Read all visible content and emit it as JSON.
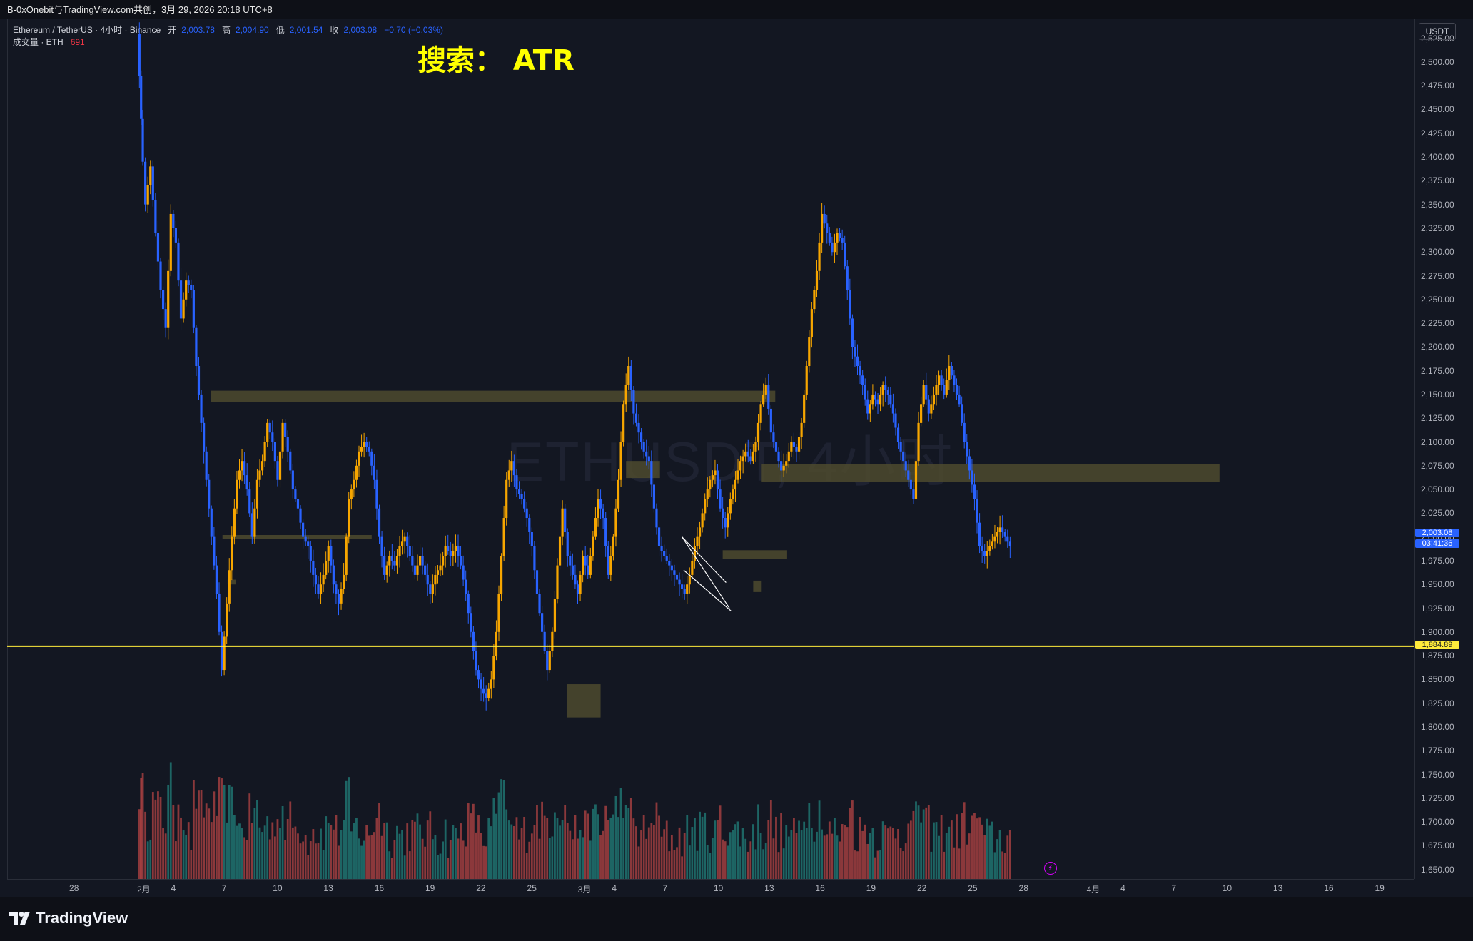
{
  "header": {
    "share_text": "B-0xOnebit与TradingView.com共创，3月 29, 2026 20:18 UTC+8"
  },
  "legend": {
    "symbol": "Ethereum / TetherUS · 4小时 · Binance",
    "open_label": "开=",
    "open": "2,003.78",
    "high_label": "高=",
    "high": "2,004.90",
    "low_label": "低=",
    "low": "2,001.54",
    "close_label": "收=",
    "close": "2,003.08",
    "change": "−0.70 (−0.03%)",
    "volume_label": "成交量 · ETH",
    "volume": "691"
  },
  "watermark": "ETHUSDT, 4小时",
  "annotation": "搜索： ATR",
  "price_axis": {
    "unit": "USDT",
    "current_price": "2,003.08",
    "countdown": "03:41:36",
    "line_price": "1,884.89"
  },
  "footer": {
    "brand": "TradingView"
  },
  "colors": {
    "background": "#131722",
    "up_candle": "#f7a600",
    "down_candle": "#2962ff",
    "vol_up": "#26a69a",
    "vol_down": "#ef5350",
    "zone": "#4d4a2e",
    "support_line": "#ffeb3b"
  },
  "chart_data": {
    "type": "candlestick",
    "y_ticks": [
      "2,525.00",
      "2,500.00",
      "2,475.00",
      "2,450.00",
      "2,425.00",
      "2,400.00",
      "2,375.00",
      "2,350.00",
      "2,325.00",
      "2,300.00",
      "2,275.00",
      "2,250.00",
      "2,225.00",
      "2,200.00",
      "2,175.00",
      "2,150.00",
      "2,125.00",
      "2,100.00",
      "2,075.00",
      "2,050.00",
      "2,025.00",
      "2,000.00",
      "1,975.00",
      "1,950.00",
      "1,925.00",
      "1,900.00",
      "1,875.00",
      "1,850.00",
      "1,825.00",
      "1,800.00",
      "1,775.00",
      "1,750.00",
      "1,725.00",
      "1,700.00",
      "1,675.00",
      "1,650.00"
    ],
    "ylim": [
      1640,
      2545
    ],
    "x_ticks": [
      "28",
      "2月",
      "4",
      "7",
      "10",
      "13",
      "16",
      "19",
      "22",
      "25",
      "3月",
      "4",
      "7",
      "10",
      "13",
      "16",
      "19",
      "22",
      "25",
      "28",
      "4月",
      "4",
      "7",
      "10",
      "13",
      "16",
      "19"
    ],
    "x_tick_days": [
      -4,
      0,
      2,
      5,
      8,
      11,
      14,
      17,
      20,
      23,
      26,
      28,
      31,
      34,
      37,
      40,
      43,
      46,
      49,
      52,
      56,
      58,
      61,
      64,
      67,
      70,
      73
    ],
    "xlim": [
      -8,
      75
    ],
    "path": [
      [
        -0.2,
        2530
      ],
      [
        0,
        2440
      ],
      [
        0.3,
        2350
      ],
      [
        0.6,
        2390
      ],
      [
        0.9,
        2320
      ],
      [
        1.2,
        2260
      ],
      [
        1.5,
        2220
      ],
      [
        1.8,
        2340
      ],
      [
        2.1,
        2310
      ],
      [
        2.4,
        2230
      ],
      [
        2.7,
        2270
      ],
      [
        3.0,
        2260
      ],
      [
        3.3,
        2180
      ],
      [
        3.6,
        2120
      ],
      [
        3.9,
        2060
      ],
      [
        4.2,
        2000
      ],
      [
        4.5,
        1940
      ],
      [
        4.8,
        1860
      ],
      [
        5.1,
        1930
      ],
      [
        5.4,
        2000
      ],
      [
        5.7,
        2060
      ],
      [
        6.0,
        2080
      ],
      [
        6.3,
        2050
      ],
      [
        6.6,
        2000
      ],
      [
        6.9,
        2060
      ],
      [
        7.2,
        2080
      ],
      [
        7.5,
        2120
      ],
      [
        7.8,
        2100
      ],
      [
        8.1,
        2060
      ],
      [
        8.4,
        2120
      ],
      [
        8.7,
        2090
      ],
      [
        9.0,
        2050
      ],
      [
        9.3,
        2030
      ],
      [
        9.6,
        2000
      ],
      [
        9.9,
        1990
      ],
      [
        10.2,
        1960
      ],
      [
        10.5,
        1940
      ],
      [
        10.8,
        1960
      ],
      [
        11.1,
        1990
      ],
      [
        11.4,
        1950
      ],
      [
        11.7,
        1930
      ],
      [
        12.0,
        1960
      ],
      [
        12.3,
        2040
      ],
      [
        12.6,
        2060
      ],
      [
        12.9,
        2090
      ],
      [
        13.2,
        2100
      ],
      [
        13.5,
        2090
      ],
      [
        13.8,
        2060
      ],
      [
        14.1,
        2000
      ],
      [
        14.4,
        1960
      ],
      [
        14.7,
        1980
      ],
      [
        15.0,
        1970
      ],
      [
        15.3,
        1990
      ],
      [
        15.6,
        2000
      ],
      [
        15.9,
        1980
      ],
      [
        16.2,
        1960
      ],
      [
        16.5,
        1980
      ],
      [
        16.8,
        1960
      ],
      [
        17.1,
        1940
      ],
      [
        17.4,
        1960
      ],
      [
        17.7,
        1970
      ],
      [
        18.0,
        1990
      ],
      [
        18.3,
        1980
      ],
      [
        18.6,
        1990
      ],
      [
        18.9,
        1970
      ],
      [
        19.2,
        1940
      ],
      [
        19.5,
        1900
      ],
      [
        19.8,
        1860
      ],
      [
        20.1,
        1840
      ],
      [
        20.4,
        1830
      ],
      [
        20.7,
        1850
      ],
      [
        21.0,
        1900
      ],
      [
        21.3,
        1980
      ],
      [
        21.6,
        2060
      ],
      [
        21.9,
        2080
      ],
      [
        22.2,
        2050
      ],
      [
        22.5,
        2040
      ],
      [
        22.8,
        2020
      ],
      [
        23.1,
        1990
      ],
      [
        23.4,
        1940
      ],
      [
        23.7,
        1900
      ],
      [
        24.0,
        1860
      ],
      [
        24.3,
        1900
      ],
      [
        24.6,
        1970
      ],
      [
        24.9,
        2030
      ],
      [
        25.2,
        1980
      ],
      [
        25.5,
        1960
      ],
      [
        25.8,
        1940
      ],
      [
        26.1,
        1980
      ],
      [
        26.4,
        1960
      ],
      [
        26.7,
        2000
      ],
      [
        27.0,
        2040
      ],
      [
        27.3,
        2020
      ],
      [
        27.6,
        1960
      ],
      [
        27.9,
        2000
      ],
      [
        28.2,
        2060
      ],
      [
        28.5,
        2140
      ],
      [
        28.8,
        2180
      ],
      [
        29.1,
        2130
      ],
      [
        29.4,
        2110
      ],
      [
        29.7,
        2090
      ],
      [
        30.0,
        2080
      ],
      [
        30.3,
        2030
      ],
      [
        30.6,
        1990
      ],
      [
        30.9,
        1980
      ],
      [
        31.2,
        1970
      ],
      [
        31.5,
        1960
      ],
      [
        31.8,
        1950
      ],
      [
        32.1,
        1940
      ],
      [
        32.4,
        1960
      ],
      [
        32.7,
        1990
      ],
      [
        33.0,
        2010
      ],
      [
        33.3,
        2040
      ],
      [
        33.6,
        2060
      ],
      [
        33.9,
        2070
      ],
      [
        34.2,
        2030
      ],
      [
        34.5,
        2010
      ],
      [
        34.8,
        2040
      ],
      [
        35.1,
        2060
      ],
      [
        35.4,
        2080
      ],
      [
        35.7,
        2090
      ],
      [
        36.0,
        2080
      ],
      [
        36.3,
        2100
      ],
      [
        36.6,
        2140
      ],
      [
        36.9,
        2160
      ],
      [
        37.2,
        2110
      ],
      [
        37.5,
        2090
      ],
      [
        37.8,
        2070
      ],
      [
        38.1,
        2080
      ],
      [
        38.4,
        2100
      ],
      [
        38.7,
        2090
      ],
      [
        39.0,
        2120
      ],
      [
        39.3,
        2180
      ],
      [
        39.6,
        2240
      ],
      [
        39.9,
        2280
      ],
      [
        40.2,
        2340
      ],
      [
        40.5,
        2320
      ],
      [
        40.8,
        2300
      ],
      [
        41.1,
        2320
      ],
      [
        41.4,
        2310
      ],
      [
        41.7,
        2260
      ],
      [
        42.0,
        2200
      ],
      [
        42.3,
        2180
      ],
      [
        42.6,
        2160
      ],
      [
        42.9,
        2130
      ],
      [
        43.2,
        2150
      ],
      [
        43.5,
        2140
      ],
      [
        43.8,
        2160
      ],
      [
        44.1,
        2150
      ],
      [
        44.4,
        2130
      ],
      [
        44.7,
        2100
      ],
      [
        45.0,
        2080
      ],
      [
        45.3,
        2060
      ],
      [
        45.6,
        2040
      ],
      [
        45.9,
        2120
      ],
      [
        46.2,
        2160
      ],
      [
        46.5,
        2130
      ],
      [
        46.8,
        2150
      ],
      [
        47.1,
        2170
      ],
      [
        47.4,
        2150
      ],
      [
        47.7,
        2180
      ],
      [
        48.0,
        2160
      ],
      [
        48.3,
        2140
      ],
      [
        48.6,
        2100
      ],
      [
        48.9,
        2070
      ],
      [
        49.2,
        2040
      ],
      [
        49.5,
        1990
      ],
      [
        49.8,
        1980
      ],
      [
        50.1,
        1990
      ],
      [
        50.4,
        2000
      ],
      [
        50.7,
        2010
      ],
      [
        51.0,
        2000
      ],
      [
        51.3,
        1990
      ]
    ],
    "zones": [
      {
        "x0": 4.0,
        "x1": 37.3,
        "y0": 2142,
        "y1": 2154
      },
      {
        "x0": 4.7,
        "x1": 13.5,
        "y0": 1998,
        "y1": 2002
      },
      {
        "x0": 5.0,
        "x1": 5.5,
        "y0": 1950,
        "y1": 1955
      },
      {
        "x0": 28.5,
        "x1": 30.5,
        "y0": 2062,
        "y1": 2080
      },
      {
        "x0": 36.5,
        "x1": 63.5,
        "y0": 2058,
        "y1": 2077
      },
      {
        "x0": 34.2,
        "x1": 38.0,
        "y0": 1977,
        "y1": 1986
      },
      {
        "x0": 36.0,
        "x1": 36.5,
        "y0": 1942,
        "y1": 1954
      },
      {
        "x0": 25.0,
        "x1": 27.0,
        "y0": 1810,
        "y1": 1845
      }
    ],
    "horizontal_line": 1884.89,
    "current_price": 2003.08,
    "channel": [
      {
        "x0": 31.8,
        "y0": 2000,
        "x1": 34.6,
        "y1": 1925
      },
      {
        "x0": 31.9,
        "y0": 1965,
        "x1": 34.7,
        "y1": 1922
      },
      {
        "x0": 31.8,
        "y0": 2000,
        "x1": 34.4,
        "y1": 1952
      }
    ]
  }
}
